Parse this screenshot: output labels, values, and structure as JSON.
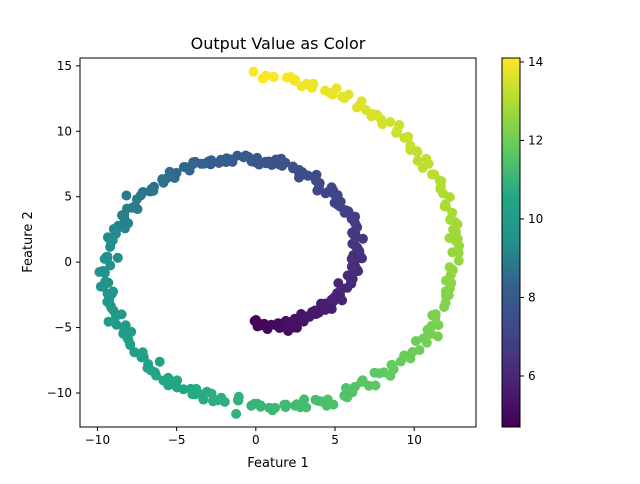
{
  "chart_data": {
    "type": "scatter",
    "title": "Output Value as Color",
    "xlabel": "Feature 1",
    "ylabel": "Feature 2",
    "xlim": [
      -11.1,
      13.9
    ],
    "ylim": [
      -12.6,
      15.6
    ],
    "x_ticks": [
      -10,
      -5,
      0,
      5,
      10
    ],
    "y_ticks": [
      -10,
      -5,
      0,
      5,
      10,
      15
    ],
    "colorbar": {
      "colormap": "viridis",
      "range": [
        4.7,
        14.1
      ],
      "ticks": [
        6,
        8,
        10,
        12,
        14
      ]
    },
    "marker_color_encodes": "output value (t)",
    "spiral_params": {
      "t_start": 4.71,
      "t_end": 14.14,
      "count": 400
    },
    "points": [
      {
        "t": 4.71,
        "x": 0.0,
        "y": -4.7
      },
      {
        "t": 5.5,
        "x": 3.9,
        "y": -3.9
      },
      {
        "t": 6.28,
        "x": 6.3,
        "y": 0.0
      },
      {
        "t": 7.07,
        "x": 5.0,
        "y": 5.0
      },
      {
        "t": 7.85,
        "x": 0.0,
        "y": 7.9
      },
      {
        "t": 8.64,
        "x": -6.1,
        "y": 6.1
      },
      {
        "t": 9.42,
        "x": -9.4,
        "y": 0.0
      },
      {
        "t": 10.21,
        "x": -7.2,
        "y": -7.2
      },
      {
        "t": 11.0,
        "x": 0.0,
        "y": -11.0
      },
      {
        "t": 11.78,
        "x": 8.3,
        "y": -8.3
      },
      {
        "t": 12.57,
        "x": 12.6,
        "y": 0.0
      },
      {
        "t": 13.35,
        "x": 9.4,
        "y": 9.4
      },
      {
        "t": 14.14,
        "x": 0.0,
        "y": 14.1
      }
    ]
  }
}
